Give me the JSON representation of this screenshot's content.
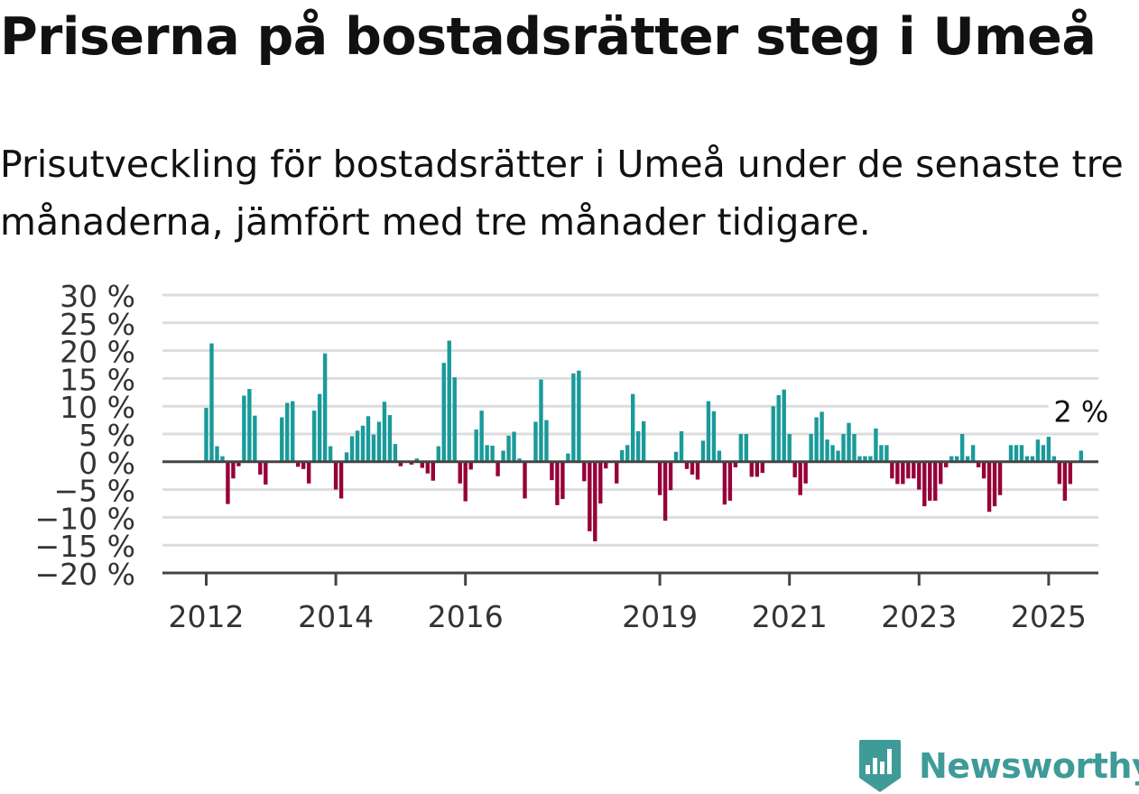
{
  "title": "Priserna på bostadsrätter steg i Umeå",
  "subtitle": "Prisutveckling för bostadsrätter i Umeå under de senaste tre månaderna, jämfört med tre månader tidigare.",
  "brand": {
    "name": "Newsworthy",
    "icon": "newsworthy-logo-icon"
  },
  "colors": {
    "positive": "#1a9a9a",
    "negative": "#960038",
    "grid": "#dddddd",
    "zero_line": "#444444",
    "text": "#111111",
    "axis_text": "#333333",
    "brand": "#3f9b98"
  },
  "chart_data": {
    "type": "bar",
    "title": "",
    "xlabel": "",
    "ylabel": "",
    "ylim": [
      -20,
      30
    ],
    "y_ticks": [
      30,
      25,
      20,
      15,
      10,
      5,
      0,
      -5,
      -10,
      -15,
      -20
    ],
    "y_tick_labels": [
      "30 %",
      "25 %",
      "20 %",
      "15 %",
      "10 %",
      "5 %",
      "0 %",
      "−5 %",
      "−10 %",
      "−15 %",
      "−20 %"
    ],
    "x_ticks": [
      2012,
      2014,
      2016,
      2019,
      2021,
      2023,
      2025
    ],
    "x_tick_labels": [
      "2012",
      "2014",
      "2016",
      "2019",
      "2021",
      "2023",
      "2025"
    ],
    "x_start": 2012,
    "grid": true,
    "annotation": {
      "text": "2 %",
      "value": 2
    },
    "values": [
      9.7,
      21.3,
      2.8,
      1,
      -7.6,
      -3,
      -0.8,
      11.9,
      13.1,
      8.3,
      -2.3,
      -4.1,
      0,
      0,
      8,
      10.6,
      10.9,
      -0.9,
      -1.3,
      -3.9,
      9.2,
      12.2,
      19.5,
      2.8,
      -5,
      -6.6,
      1.7,
      4.6,
      5.6,
      6.5,
      8.2,
      4.9,
      7.2,
      10.8,
      8.4,
      3.2,
      -0.8,
      0,
      -0.5,
      0.6,
      -1.1,
      -2.1,
      -3.4,
      2.8,
      17.8,
      21.8,
      15.2,
      -3.9,
      -7.1,
      -1.4,
      5.8,
      9.2,
      3,
      2.9,
      -2.6,
      2,
      4.7,
      5.4,
      0.6,
      -6.6,
      0,
      7.2,
      14.8,
      7.5,
      -3.3,
      -7.8,
      -6.7,
      1.5,
      15.9,
      16.4,
      -3.5,
      -12.5,
      -14.3,
      -7.5,
      -1.2,
      0,
      -3.9,
      2.1,
      3,
      12.2,
      5.5,
      7.3,
      0,
      0,
      -6,
      -10.6,
      -5.1,
      1.8,
      5.5,
      -1.3,
      -2.3,
      -3.2,
      3.8,
      10.9,
      9.1,
      2,
      -7.7,
      -7,
      -1,
      5,
      5,
      -2.7,
      -2.7,
      -2,
      0,
      10,
      12,
      13,
      5,
      -2.8,
      -6,
      -3.9,
      5,
      8,
      9,
      4,
      3,
      2,
      5,
      7,
      5,
      1,
      1,
      1,
      6,
      3,
      3,
      -3,
      -4,
      -4,
      -3,
      -3,
      -5,
      -8,
      -7,
      -7,
      -4,
      -1,
      1,
      1,
      5,
      1,
      3,
      -1,
      -3,
      -9,
      -8,
      -6,
      0,
      3,
      3,
      3,
      1,
      1,
      4,
      3,
      4.5,
      1,
      -4,
      -7,
      -4,
      0,
      2
    ]
  }
}
